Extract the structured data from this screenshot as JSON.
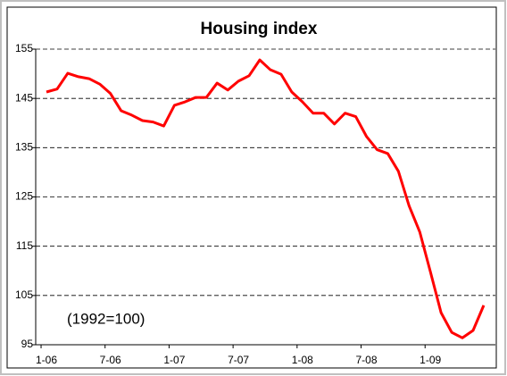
{
  "chart_data": {
    "type": "line",
    "title": "Housing index",
    "annotation": "(1992=100)",
    "categories": [
      "1-06",
      null,
      null,
      null,
      null,
      null,
      "7-06",
      null,
      null,
      null,
      null,
      null,
      "1-07",
      null,
      null,
      null,
      null,
      null,
      "7-07",
      null,
      null,
      null,
      null,
      null,
      "1-08",
      null,
      null,
      null,
      null,
      null,
      "7-08",
      null,
      null,
      null,
      null,
      null,
      "1-09",
      null,
      null,
      null,
      null,
      null
    ],
    "series": [
      {
        "name": "Housing index",
        "color": "#ff0000",
        "values": [
          146.3,
          146.9,
          150.1,
          149.4,
          149.0,
          147.9,
          146.0,
          142.5,
          141.6,
          140.5,
          140.2,
          139.4,
          143.6,
          144.3,
          145.2,
          145.2,
          148.1,
          146.7,
          148.5,
          149.6,
          152.8,
          150.8,
          149.9,
          146.3,
          144.3,
          142.0,
          142.0,
          139.8,
          142.0,
          141.3,
          137.3,
          134.6,
          133.8,
          130.2,
          123.2,
          117.9,
          109.8,
          101.5,
          97.5,
          96.4,
          97.9,
          103.0
        ]
      }
    ],
    "ylim": [
      95,
      155
    ],
    "yticks": [
      95,
      105,
      115,
      125,
      135,
      145,
      155
    ],
    "grid": true
  }
}
